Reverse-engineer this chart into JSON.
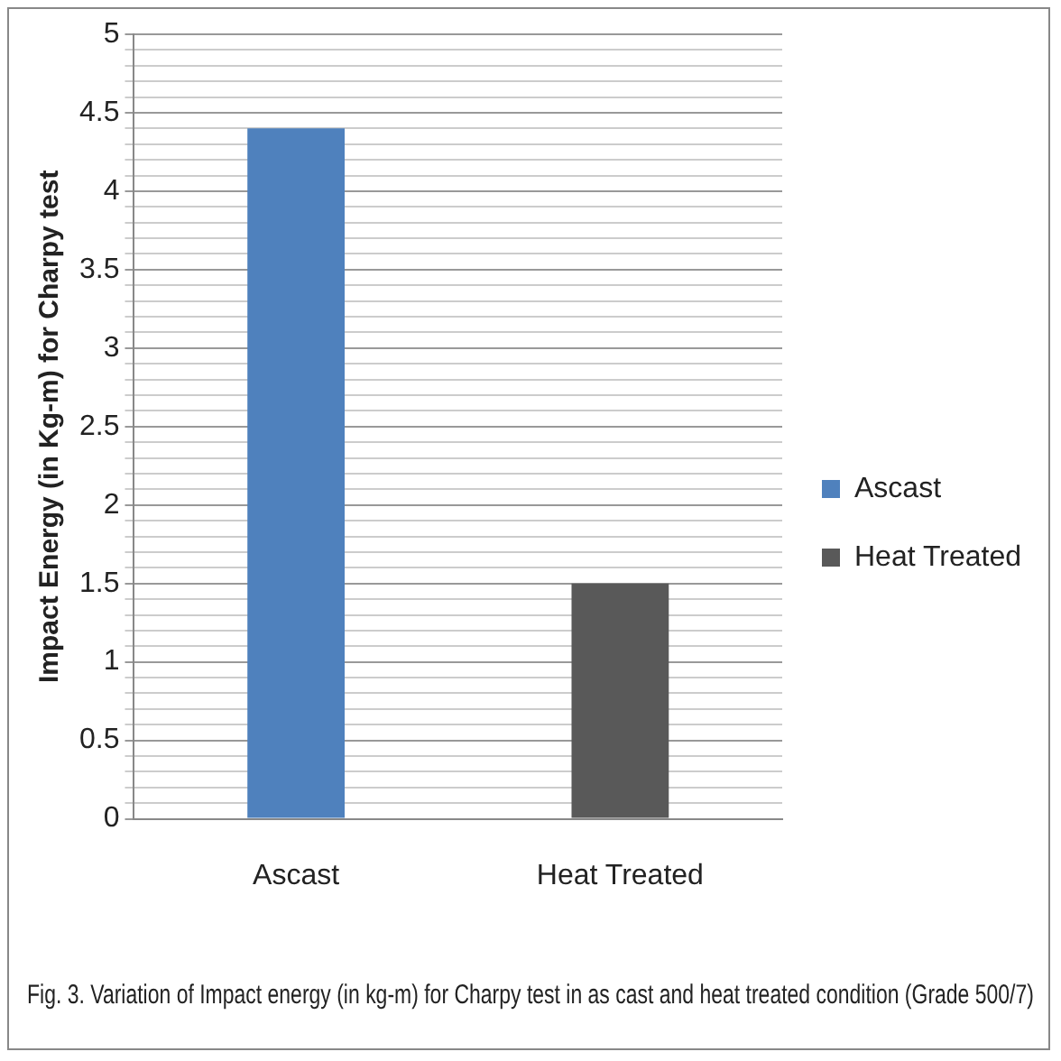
{
  "chart_data": {
    "type": "bar",
    "title": "Fig. 3. Variation of Impact energy (in kg-m) for Charpy test in as cast and heat treated condition (Grade 500/7)",
    "ylabel": "Impact Energy (in Kg-m) for Charpy test",
    "categories": [
      "Ascast",
      "Heat Treated"
    ],
    "series": [
      {
        "name": "Ascast",
        "color": "#4f81bd",
        "values": [
          4.4,
          null
        ]
      },
      {
        "name": "Heat Treated",
        "color": "#595959",
        "values": [
          null,
          1.5
        ]
      }
    ],
    "ylim": [
      0,
      5
    ],
    "yticks": [
      0,
      {
        "value": 0.1,
        "label": null
      },
      {
        "value": 0.2,
        "label": null
      },
      {
        "value": 0.3,
        "label": null
      },
      {
        "value": 0.4,
        "label": null
      },
      0.5,
      {
        "value": 0.6,
        "label": null
      },
      {
        "value": 0.7,
        "label": null
      },
      {
        "value": 0.8,
        "label": null
      },
      {
        "value": 0.9,
        "label": null
      },
      1,
      {
        "value": 1.1,
        "label": null
      },
      {
        "value": 1.2,
        "label": null
      },
      {
        "value": 1.3,
        "label": null
      },
      {
        "value": 1.4,
        "label": null
      },
      1.5,
      {
        "value": 1.6,
        "label": null
      },
      {
        "value": 1.7,
        "label": null
      },
      {
        "value": 1.8,
        "label": null
      },
      {
        "value": 1.9,
        "label": null
      },
      2,
      {
        "value": 2.1,
        "label": null
      },
      {
        "value": 2.2,
        "label": null
      },
      {
        "value": 2.3,
        "label": null
      },
      {
        "value": 2.4,
        "label": null
      },
      2.5,
      {
        "value": 2.6,
        "label": null
      },
      {
        "value": 2.7,
        "label": null
      },
      {
        "value": 2.8,
        "label": null
      },
      {
        "value": 2.9,
        "label": null
      },
      3,
      {
        "value": 3.1,
        "label": null
      },
      {
        "value": 3.2,
        "label": null
      },
      {
        "value": 3.3,
        "label": null
      },
      {
        "value": 3.4,
        "label": null
      },
      3.5,
      {
        "value": 3.6,
        "label": null
      },
      {
        "value": 3.7,
        "label": null
      },
      {
        "value": 3.8,
        "label": null
      },
      {
        "value": 3.9,
        "label": null
      },
      4,
      {
        "value": 4.1,
        "label": null
      },
      {
        "value": 4.2,
        "label": null
      },
      {
        "value": 4.3,
        "label": null
      },
      {
        "value": 4.4,
        "label": null
      },
      4.5,
      {
        "value": 4.6,
        "label": null
      },
      {
        "value": 4.7,
        "label": null
      },
      {
        "value": 4.8,
        "label": null
      },
      {
        "value": 4.9,
        "label": null
      },
      5
    ],
    "grid": "y",
    "legend": "right"
  }
}
